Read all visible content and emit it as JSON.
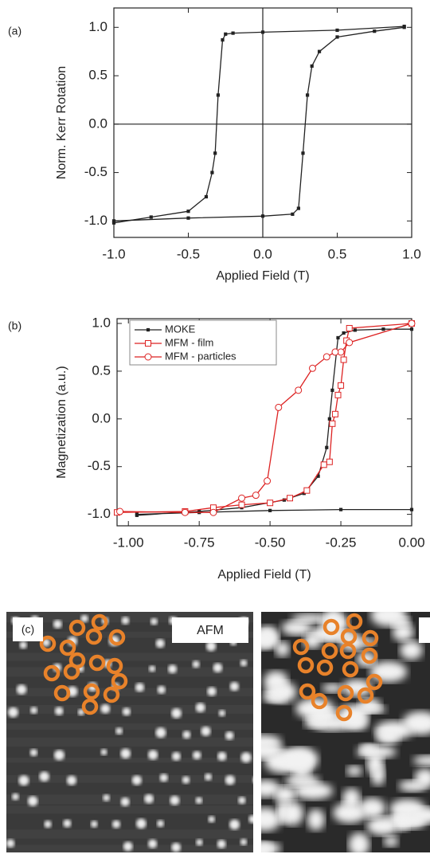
{
  "chart_data": [
    {
      "type": "line",
      "panel_label": "(a)",
      "xlabel": "Applied Field (T)",
      "ylabel": "Norm. Kerr Rotation",
      "xlim": [
        -1,
        1
      ],
      "ylim": [
        -1.17,
        1.2
      ],
      "xticks": [
        {
          "value": -1,
          "label": "-1.0"
        },
        -0.5,
        {
          "value": 0,
          "label": "0.0"
        },
        0.5,
        {
          "value": 1,
          "label": "1.0"
        }
      ],
      "yticks": [
        {
          "value": -1,
          "label": "-1.0"
        },
        -0.5,
        {
          "value": 0,
          "label": "0.0"
        },
        0.5,
        {
          "value": 1,
          "label": "1.0"
        }
      ],
      "zero_lines": true,
      "series": [
        {
          "color": "#222222",
          "marker": "square",
          "marker_fill": "#222222",
          "x": [
            0.95,
            0.5,
            0,
            -0.2,
            -0.25,
            -0.27,
            -0.3,
            -0.32,
            -0.34,
            -0.38,
            -0.5,
            -0.75,
            -1.0
          ],
          "values": [
            1.01,
            0.97,
            0.95,
            0.94,
            0.93,
            0.87,
            0.3,
            -0.3,
            -0.5,
            -0.75,
            -0.9,
            -0.96,
            -1.02
          ]
        },
        {
          "color": "#222222",
          "marker": "square",
          "marker_fill": "#222222",
          "x": [
            -1.0,
            -0.5,
            0,
            0.2,
            0.24,
            0.27,
            0.3,
            0.33,
            0.38,
            0.5,
            0.75,
            0.95
          ],
          "values": [
            -1.0,
            -0.97,
            -0.95,
            -0.93,
            -0.87,
            -0.3,
            0.3,
            0.6,
            0.75,
            0.9,
            0.96,
            1.0
          ]
        }
      ]
    },
    {
      "type": "line",
      "panel_label": "(b)",
      "xlabel": "Applied Field (T)",
      "ylabel": "Magnetization (a.u.)",
      "xlim": [
        -1.04,
        0
      ],
      "ylim": [
        -1.12,
        1.05
      ],
      "xticks": [
        {
          "value": -1,
          "label": "-1.00"
        },
        -0.75,
        {
          "value": -0.5,
          "label": "-0.50"
        },
        -0.25,
        {
          "value": 0,
          "label": "0.00"
        }
      ],
      "yticks": [
        {
          "value": -1,
          "label": "-1.0"
        },
        -0.5,
        {
          "value": 0,
          "label": "0.0"
        },
        0.5,
        {
          "value": 1,
          "label": "1.0"
        }
      ],
      "legend": "top-left",
      "series": [
        {
          "name": "MOKE",
          "color": "#222222",
          "marker": "square",
          "marker_fill": "#222222",
          "x": [
            0,
            -0.1,
            -0.2,
            -0.24,
            -0.26,
            -0.28,
            -0.29,
            -0.3,
            -0.33,
            -0.38,
            -0.45,
            -0.6,
            -0.75,
            -0.97,
            null,
            -0.97,
            -0.75,
            -0.5,
            -0.25,
            0
          ],
          "values": [
            0.94,
            0.94,
            0.93,
            0.9,
            0.85,
            0.3,
            0,
            -0.3,
            -0.6,
            -0.78,
            -0.85,
            -0.93,
            -0.97,
            -1.01,
            null,
            -1.0,
            -0.98,
            -0.96,
            -0.95,
            -0.95
          ]
        },
        {
          "name": "MFM - film",
          "color": "#dd2222",
          "marker": "square",
          "marker_fill": "#ffffff",
          "x": [
            0,
            -0.22,
            -0.23,
            -0.24,
            -0.25,
            -0.26,
            -0.27,
            -0.28,
            -0.29,
            -0.31,
            -0.37,
            -0.43,
            -0.5,
            -0.6,
            -0.7,
            -0.8,
            -1.04
          ],
          "values": [
            1.0,
            0.95,
            0.82,
            0.62,
            0.35,
            0.25,
            0.05,
            -0.05,
            -0.45,
            -0.48,
            -0.75,
            -0.83,
            -0.88,
            -0.9,
            -0.93,
            -0.97,
            -0.98
          ]
        },
        {
          "name": "MFM - particles",
          "color": "#dd2222",
          "marker": "circle",
          "marker_fill": "#ffffff",
          "x": [
            0,
            -0.22,
            -0.25,
            -0.27,
            -0.3,
            -0.35,
            -0.4,
            -0.47,
            -0.51,
            -0.55,
            -0.6,
            -0.7,
            -0.8,
            -1.03
          ],
          "values": [
            1.0,
            0.8,
            0.7,
            0.7,
            0.65,
            0.53,
            0.3,
            0.12,
            -0.65,
            -0.8,
            -0.83,
            -0.98,
            -0.98,
            -0.97
          ]
        }
      ]
    }
  ],
  "images": {
    "panel_label": "(c)",
    "afm_label": "AFM"
  }
}
